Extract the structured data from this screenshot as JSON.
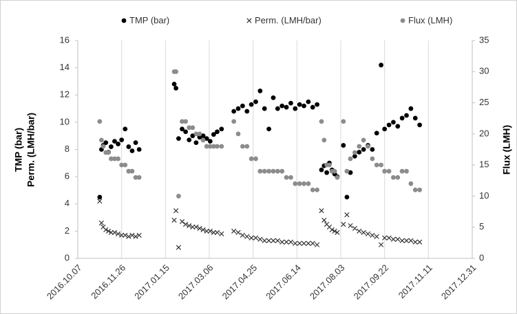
{
  "chart_data": {
    "type": "scatter",
    "x": [
      "2016.11.01",
      "2016.11.03",
      "2016.11.05",
      "2016.11.08",
      "2016.11.11",
      "2016.11.14",
      "2016.11.18",
      "2016.11.22",
      "2016.11.26",
      "2016.11.30",
      "2016.12.04",
      "2016.12.08",
      "2016.12.12",
      "2016.12.16",
      "2017.01.25",
      "2017.01.27",
      "2017.01.30",
      "2017.02.03",
      "2017.02.07",
      "2017.02.11",
      "2017.02.15",
      "2017.02.19",
      "2017.02.23",
      "2017.02.27",
      "2017.03.03",
      "2017.03.07",
      "2017.03.11",
      "2017.03.15",
      "2017.03.20",
      "2017.04.03",
      "2017.04.08",
      "2017.04.13",
      "2017.04.18",
      "2017.04.23",
      "2017.04.28",
      "2017.05.03",
      "2017.05.08",
      "2017.05.13",
      "2017.05.18",
      "2017.05.23",
      "2017.05.28",
      "2017.06.02",
      "2017.06.07",
      "2017.06.12",
      "2017.06.17",
      "2017.06.22",
      "2017.06.27",
      "2017.07.02",
      "2017.07.07",
      "2017.07.12",
      "2017.07.15",
      "2017.07.18",
      "2017.07.21",
      "2017.07.24",
      "2017.07.27",
      "2017.07.30",
      "2017.08.06",
      "2017.08.10",
      "2017.08.14",
      "2017.08.19",
      "2017.08.24",
      "2017.08.29",
      "2017.09.03",
      "2017.09.08",
      "2017.09.13",
      "2017.09.18",
      "2017.09.22",
      "2017.09.27",
      "2017.10.02",
      "2017.10.07",
      "2017.10.12",
      "2017.10.17",
      "2017.10.22",
      "2017.10.27",
      "2017.11.01"
    ],
    "series": [
      {
        "name": "TMP (bar)",
        "color": "#000000",
        "marker": "circle",
        "axis": "y",
        "values": [
          4.5,
          8.0,
          8.3,
          8.5,
          7.8,
          8.2,
          8.6,
          8.4,
          8.7,
          9.5,
          8.2,
          7.9,
          8.5,
          8.0,
          12.8,
          12.5,
          8.8,
          9.5,
          9.3,
          8.7,
          9.0,
          8.5,
          8.9,
          9.0,
          8.8,
          8.6,
          9.1,
          9.3,
          9.5,
          10.8,
          11.0,
          11.2,
          10.8,
          11.3,
          11.5,
          12.3,
          11.0,
          9.5,
          11.8,
          11.0,
          11.2,
          11.1,
          11.4,
          11.0,
          11.3,
          11.2,
          11.5,
          11.1,
          11.3,
          6.5,
          6.8,
          6.3,
          7.0,
          6.5,
          6.2,
          6.0,
          8.3,
          4.5,
          6.3,
          7.5,
          7.8,
          8.0,
          8.3,
          8.0,
          9.2,
          14.2,
          9.5,
          9.8,
          10.0,
          9.7,
          10.3,
          10.5,
          11.0,
          10.3,
          9.8
        ]
      },
      {
        "name": "Perm. (LMH/bar)",
        "color": "#333333",
        "marker": "x",
        "axis": "y",
        "values": [
          4.2,
          2.6,
          2.3,
          2.1,
          2.0,
          1.9,
          1.9,
          1.8,
          1.7,
          1.7,
          1.6,
          1.7,
          1.6,
          1.7,
          2.8,
          3.5,
          0.8,
          2.7,
          2.5,
          2.4,
          2.3,
          2.3,
          2.2,
          2.1,
          2.0,
          2.0,
          1.9,
          1.9,
          1.8,
          2.0,
          1.9,
          1.7,
          1.6,
          1.5,
          1.5,
          1.4,
          1.3,
          1.3,
          1.3,
          1.3,
          1.2,
          1.2,
          1.2,
          1.1,
          1.1,
          1.1,
          1.1,
          1.1,
          1.0,
          3.5,
          2.8,
          2.5,
          2.3,
          2.1,
          2.0,
          1.9,
          2.5,
          3.2,
          2.4,
          2.2,
          2.0,
          1.9,
          1.8,
          1.7,
          1.6,
          1.0,
          1.5,
          1.5,
          1.4,
          1.4,
          1.3,
          1.3,
          1.3,
          1.2,
          1.2
        ]
      },
      {
        "name": "Flux (LMH)",
        "color": "#8c8c8c",
        "marker": "circle",
        "axis": "y2",
        "values": [
          22,
          19,
          18,
          17,
          17,
          16,
          16,
          16,
          15,
          15,
          14,
          14,
          13,
          13,
          30,
          30,
          10,
          22,
          22,
          21,
          21,
          20,
          20,
          19,
          18,
          18,
          18,
          18,
          18,
          22,
          20,
          18,
          18,
          16,
          16,
          14,
          14,
          14,
          14,
          14,
          14,
          13,
          13,
          12,
          12,
          12,
          12,
          11,
          11,
          22,
          19,
          15,
          15,
          14,
          14,
          13,
          22,
          14,
          16,
          17,
          18,
          19,
          18,
          16,
          15,
          15,
          14,
          14,
          13,
          13,
          14,
          14,
          12,
          11,
          11
        ]
      }
    ],
    "xlim": [
      "2016.10.07",
      "2017.12.31"
    ],
    "xticks": [
      "2016.10.07",
      "2016.11.26",
      "2017.01.15",
      "2017.03.06",
      "2017.04.25",
      "2017.06.14",
      "2017.08.03",
      "2017.09.22",
      "2017.11.11",
      "2017.12.31"
    ],
    "ylim": [
      0,
      16
    ],
    "yticks": [
      0,
      2,
      4,
      6,
      8,
      10,
      12,
      14,
      16
    ],
    "y2lim": [
      0,
      35
    ],
    "y2ticks": [
      0,
      5,
      10,
      15,
      20,
      25,
      30,
      35
    ],
    "ylabel": [
      "TMP (bar)",
      "Perm. (LMH/bar)"
    ],
    "y2label": "Flux (LMH)",
    "grid": "x"
  }
}
